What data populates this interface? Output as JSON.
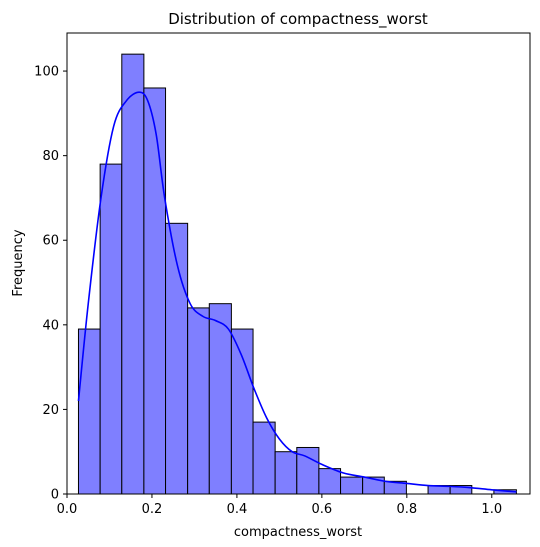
{
  "chart_data": {
    "type": "bar",
    "title": "Distribution of compactness_worst",
    "xlabel": "compactness_worst",
    "ylabel": "Frequency",
    "xlim": [
      0.0,
      1.09
    ],
    "ylim": [
      0,
      109
    ],
    "x_ticks": [
      0.0,
      0.2,
      0.4,
      0.6,
      0.8,
      1.0
    ],
    "x_tick_labels": [
      "0.0",
      "0.2",
      "0.4",
      "0.6",
      "0.8",
      "1.0"
    ],
    "y_ticks": [
      0,
      20,
      40,
      60,
      80,
      100
    ],
    "y_tick_labels": [
      "0",
      "20",
      "40",
      "60",
      "80",
      "100"
    ],
    "bins": [
      {
        "start": 0.027,
        "end": 0.078,
        "count": 39
      },
      {
        "start": 0.078,
        "end": 0.129,
        "count": 78
      },
      {
        "start": 0.129,
        "end": 0.181,
        "count": 104
      },
      {
        "start": 0.181,
        "end": 0.232,
        "count": 96
      },
      {
        "start": 0.232,
        "end": 0.284,
        "count": 64
      },
      {
        "start": 0.284,
        "end": 0.335,
        "count": 44
      },
      {
        "start": 0.335,
        "end": 0.387,
        "count": 45
      },
      {
        "start": 0.387,
        "end": 0.438,
        "count": 39
      },
      {
        "start": 0.438,
        "end": 0.49,
        "count": 17
      },
      {
        "start": 0.49,
        "end": 0.541,
        "count": 10
      },
      {
        "start": 0.541,
        "end": 0.593,
        "count": 11
      },
      {
        "start": 0.593,
        "end": 0.644,
        "count": 6
      },
      {
        "start": 0.644,
        "end": 0.696,
        "count": 4
      },
      {
        "start": 0.696,
        "end": 0.747,
        "count": 4
      },
      {
        "start": 0.747,
        "end": 0.799,
        "count": 3
      },
      {
        "start": 0.799,
        "end": 0.85,
        "count": 0
      },
      {
        "start": 0.85,
        "end": 0.902,
        "count": 2
      },
      {
        "start": 0.902,
        "end": 0.953,
        "count": 2
      },
      {
        "start": 0.953,
        "end": 1.005,
        "count": 0
      },
      {
        "start": 1.005,
        "end": 1.058,
        "count": 1
      }
    ],
    "kde": {
      "x": [
        0.027,
        0.05,
        0.08,
        0.11,
        0.14,
        0.17,
        0.19,
        0.21,
        0.23,
        0.26,
        0.29,
        0.32,
        0.35,
        0.38,
        0.41,
        0.44,
        0.47,
        0.5,
        0.53,
        0.56,
        0.6,
        0.65,
        0.7,
        0.75,
        0.8,
        0.85,
        0.9,
        0.95,
        1.0,
        1.058
      ],
      "y": [
        22,
        45,
        70,
        87,
        93,
        95,
        93,
        85,
        70,
        54,
        45,
        42,
        41,
        39,
        33,
        25,
        18,
        13,
        10,
        9,
        7,
        5,
        4,
        3,
        2.5,
        2,
        1.8,
        1.5,
        1,
        0.5
      ]
    },
    "bar_fill": "#7f7fff",
    "bar_edge": "#000000",
    "kde_color": "#0000ff",
    "grid": false,
    "legend": "none"
  }
}
